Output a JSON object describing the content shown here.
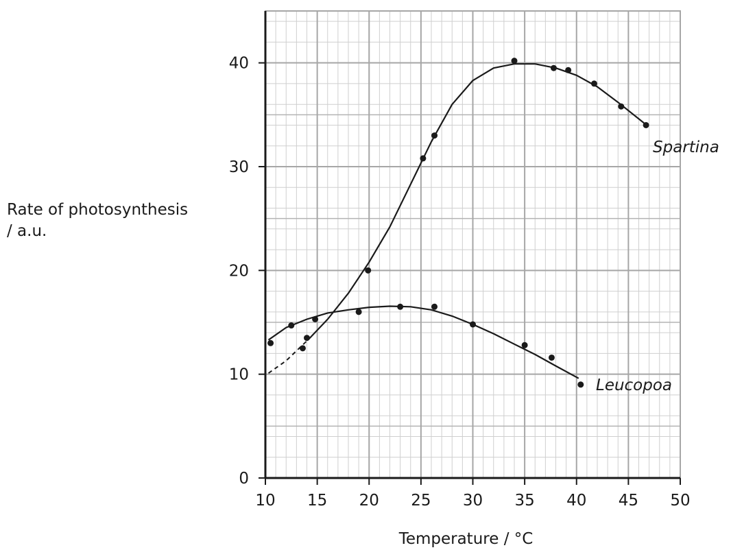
{
  "chart_data": {
    "type": "scatter",
    "title": "",
    "xlabel": "Temperature / °C",
    "ylabel_lines": [
      "Rate of photosynthesis",
      "/ a.u."
    ],
    "xlim": [
      10,
      50
    ],
    "ylim": [
      0,
      45
    ],
    "x_ticks": [
      10,
      15,
      20,
      25,
      30,
      35,
      40,
      45,
      50
    ],
    "y_ticks": [
      0,
      10,
      20,
      30,
      40
    ],
    "grid": {
      "major_x": 5,
      "major_y": 10,
      "minor_x": 1,
      "minor_y": 2
    },
    "series": [
      {
        "name": "Spartina",
        "points": [
          [
            13.6,
            12.5
          ],
          [
            14,
            13.5
          ],
          [
            19.9,
            20
          ],
          [
            25.2,
            30.8
          ],
          [
            26.3,
            33
          ],
          [
            34,
            40.2
          ],
          [
            37.8,
            39.5
          ],
          [
            39.2,
            39.3
          ],
          [
            41.7,
            38
          ],
          [
            44.3,
            35.8
          ],
          [
            46.7,
            34
          ]
        ],
        "curve": [
          [
            14.2,
            13.4
          ],
          [
            16,
            15.3
          ],
          [
            18,
            17.8
          ],
          [
            20,
            20.8
          ],
          [
            22,
            24.2
          ],
          [
            24,
            28.3
          ],
          [
            26,
            32.4
          ],
          [
            28,
            36
          ],
          [
            30,
            38.3
          ],
          [
            32,
            39.5
          ],
          [
            34,
            39.9
          ],
          [
            36,
            39.9
          ],
          [
            38,
            39.5
          ],
          [
            40,
            38.8
          ],
          [
            42,
            37.7
          ],
          [
            44,
            36.2
          ],
          [
            46.5,
            34.2
          ]
        ],
        "extrapolation": [
          [
            10.3,
            10.1
          ],
          [
            12,
            11.3
          ],
          [
            14.2,
            13.4
          ]
        ]
      },
      {
        "name": "Leucopoa",
        "points": [
          [
            10.5,
            13
          ],
          [
            12.5,
            14.7
          ],
          [
            14.8,
            15.3
          ],
          [
            19,
            16
          ],
          [
            23,
            16.5
          ],
          [
            26.3,
            16.5
          ],
          [
            30,
            14.8
          ],
          [
            35,
            12.8
          ],
          [
            37.6,
            11.6
          ],
          [
            40.4,
            9
          ]
        ],
        "curve": [
          [
            10.3,
            13.3
          ],
          [
            12,
            14.5
          ],
          [
            14,
            15.3
          ],
          [
            16,
            15.9
          ],
          [
            18,
            16.2
          ],
          [
            20,
            16.45
          ],
          [
            22,
            16.55
          ],
          [
            24,
            16.5
          ],
          [
            26,
            16.2
          ],
          [
            28,
            15.6
          ],
          [
            30,
            14.8
          ],
          [
            32,
            13.9
          ],
          [
            34,
            12.9
          ],
          [
            36,
            11.9
          ],
          [
            38,
            10.8
          ],
          [
            40.2,
            9.6
          ]
        ]
      }
    ]
  }
}
